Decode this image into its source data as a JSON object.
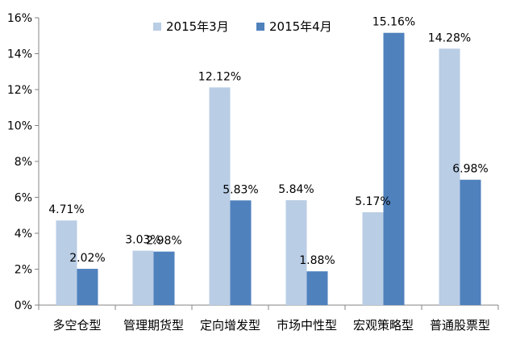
{
  "chart_data": {
    "type": "bar",
    "categories": [
      "多空仓型",
      "管理期货型",
      "定向增发型",
      "市场中性型",
      "宏观策略型",
      "普通股票型"
    ],
    "series": [
      {
        "name": "2015年3月",
        "values": [
          4.71,
          3.03,
          12.12,
          5.84,
          5.17,
          14.28
        ],
        "labels": [
          "4.71%",
          "3.03%",
          "12.12%",
          "5.84%",
          "5.17%",
          "14.28%"
        ],
        "color": "#b9cde5"
      },
      {
        "name": "2015年4月",
        "values": [
          2.02,
          2.98,
          5.83,
          1.88,
          15.16,
          6.98
        ],
        "labels": [
          "2.02%",
          "2.98%",
          "5.83%",
          "1.88%",
          "15.16%",
          "6.98%"
        ],
        "color": "#4f81bd"
      }
    ],
    "ylim": [
      0,
      16
    ],
    "yticks": [
      0,
      2,
      4,
      6,
      8,
      10,
      12,
      14,
      16
    ],
    "ytick_labels": [
      "0%",
      "2%",
      "4%",
      "6%",
      "8%",
      "10%",
      "12%",
      "14%",
      "16%"
    ],
    "grid": false,
    "legend": "top-center",
    "axis_color": "#868686"
  }
}
